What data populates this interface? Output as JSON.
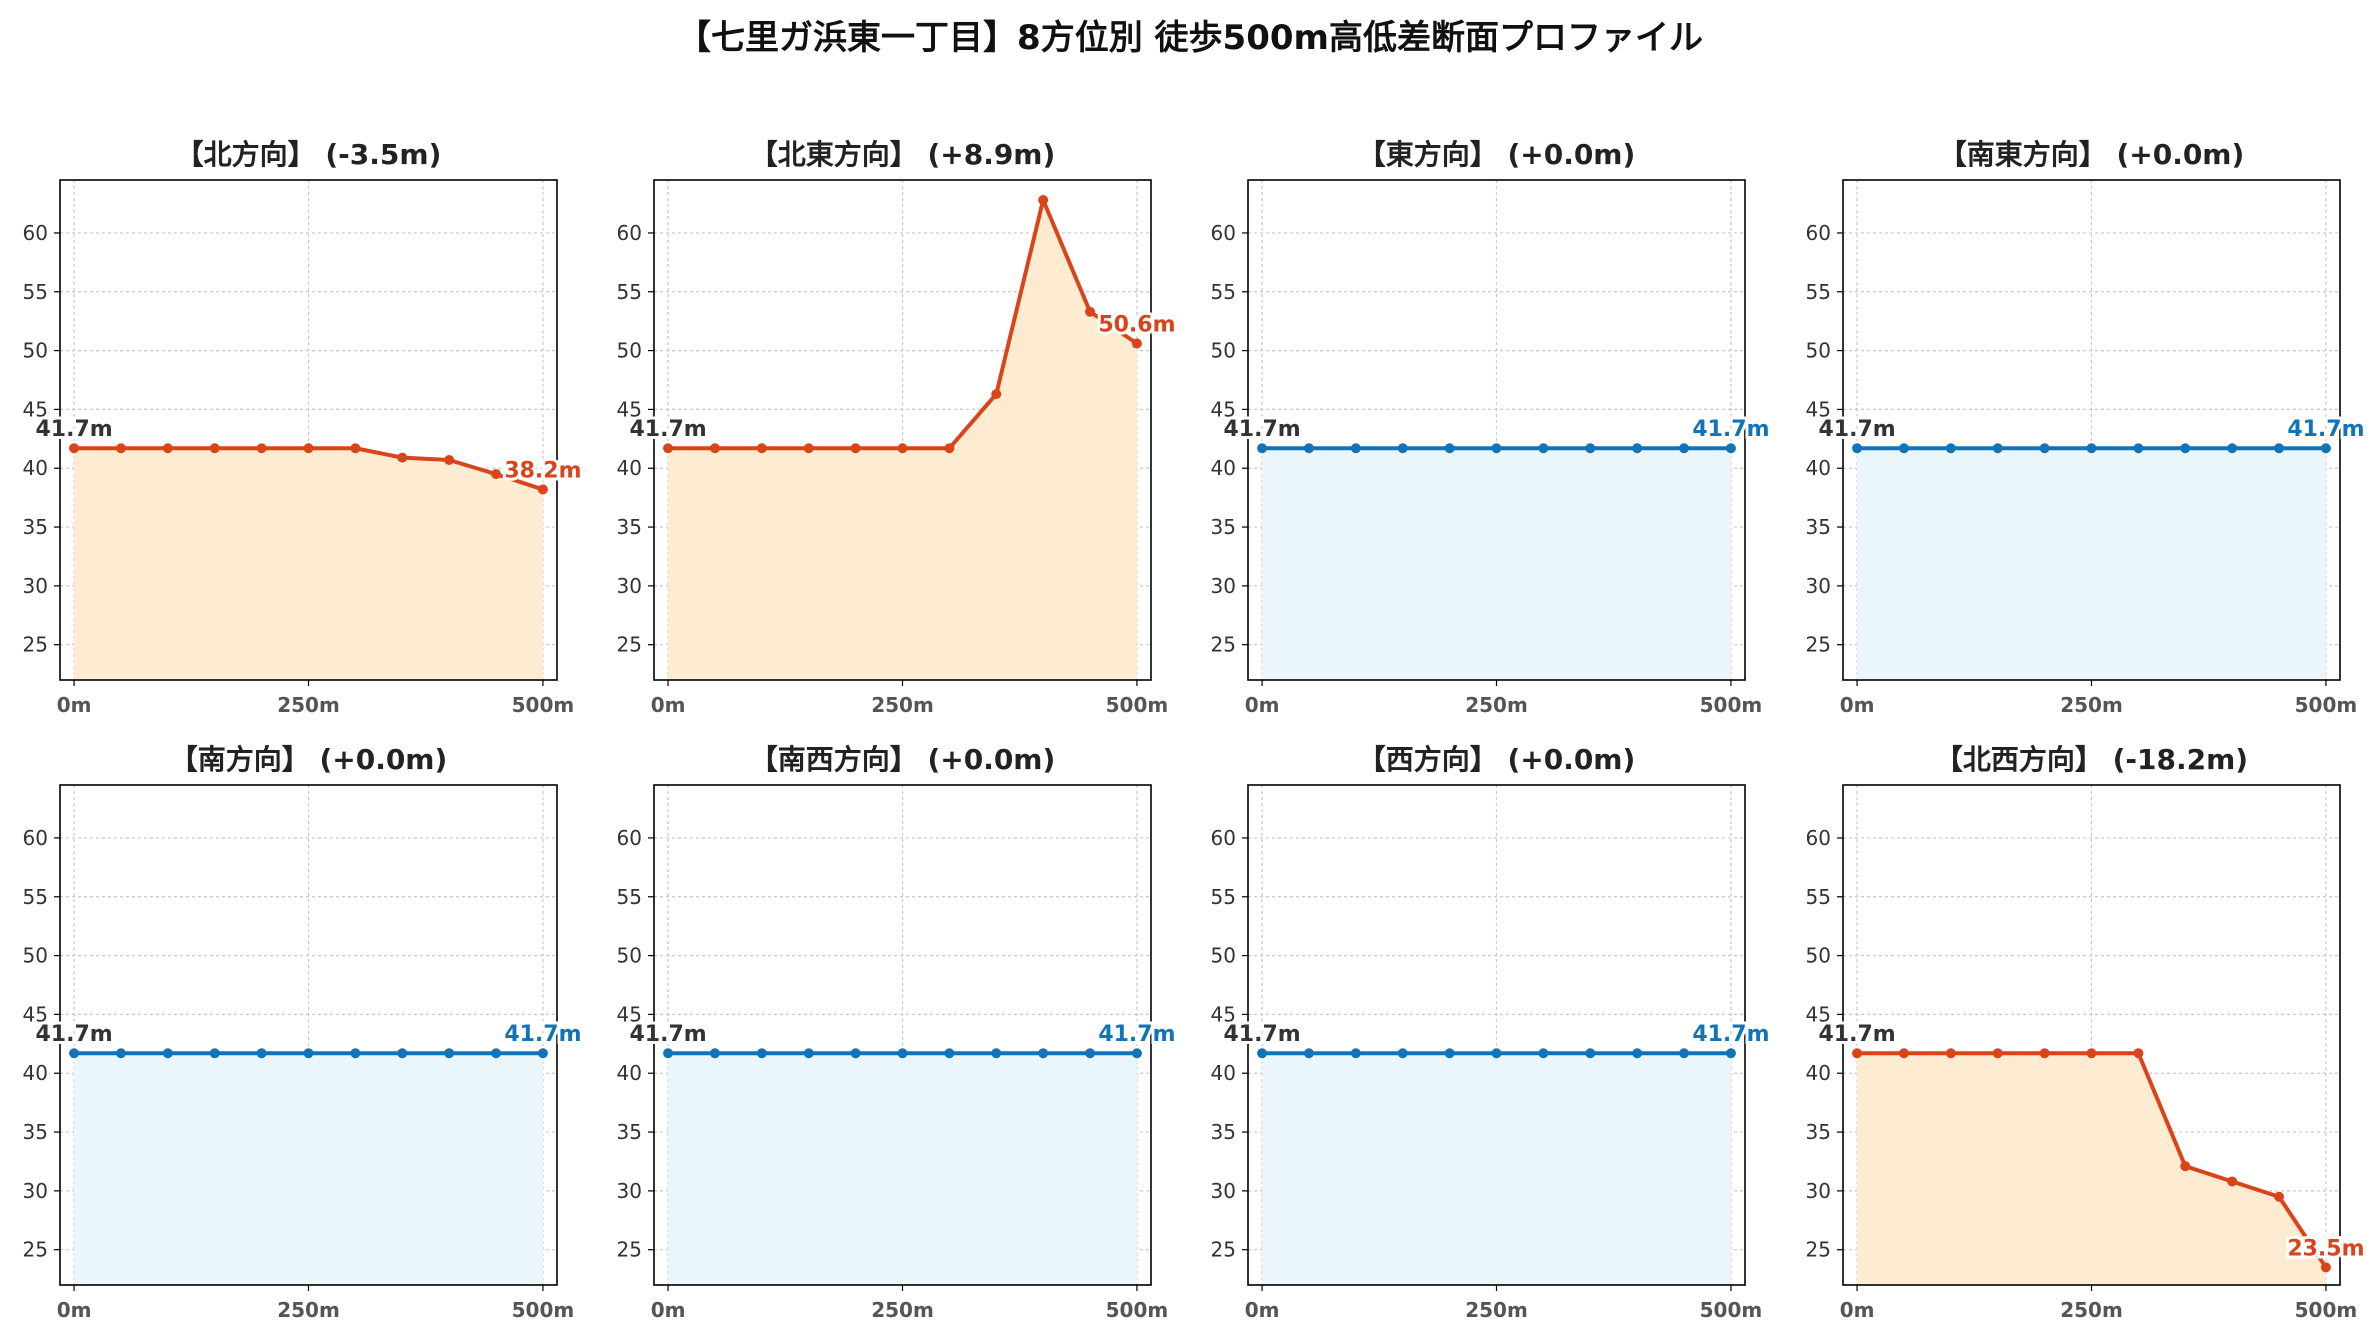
{
  "title": "【七里ガ浜東一丁目】8方位別 徒歩500m高低差断面プロファイル",
  "colors": {
    "up_line": "#d9441a",
    "up_fill": "#feecd2",
    "flat_line": "#1274b8",
    "flat_fill": "#ebf6fb",
    "start_label": "#333333",
    "grid": "#c8c8c8"
  },
  "chart_data": [
    {
      "type": "area",
      "title": "【北方向】 (-3.5m)",
      "variant": "change",
      "x": [
        0,
        50,
        100,
        150,
        200,
        250,
        300,
        350,
        400,
        450,
        500
      ],
      "values": [
        41.7,
        41.7,
        41.7,
        41.7,
        41.7,
        41.7,
        41.7,
        40.9,
        40.7,
        39.5,
        38.2
      ],
      "start_label": "41.7m",
      "end_label": "38.2m",
      "xticks": [
        "0m",
        "250m",
        "500m"
      ],
      "xlim": [
        -15,
        515
      ],
      "ylim": [
        22,
        64.5
      ],
      "yticks": [
        25,
        30,
        35,
        40,
        45,
        50,
        55,
        60
      ],
      "grid": true
    },
    {
      "type": "area",
      "title": "【北東方向】 (+8.9m)",
      "variant": "change",
      "x": [
        0,
        50,
        100,
        150,
        200,
        250,
        300,
        350,
        400,
        450,
        500
      ],
      "values": [
        41.7,
        41.7,
        41.7,
        41.7,
        41.7,
        41.7,
        41.7,
        46.3,
        62.8,
        53.3,
        50.6
      ],
      "start_label": "41.7m",
      "end_label": "50.6m",
      "xticks": [
        "0m",
        "250m",
        "500m"
      ],
      "xlim": [
        -15,
        515
      ],
      "ylim": [
        22,
        64.5
      ],
      "yticks": [
        25,
        30,
        35,
        40,
        45,
        50,
        55,
        60
      ],
      "grid": true
    },
    {
      "type": "area",
      "title": "【東方向】 (+0.0m)",
      "variant": "flat",
      "x": [
        0,
        50,
        100,
        150,
        200,
        250,
        300,
        350,
        400,
        450,
        500
      ],
      "values": [
        41.7,
        41.7,
        41.7,
        41.7,
        41.7,
        41.7,
        41.7,
        41.7,
        41.7,
        41.7,
        41.7
      ],
      "start_label": "41.7m",
      "end_label": "41.7m",
      "xticks": [
        "0m",
        "250m",
        "500m"
      ],
      "xlim": [
        -15,
        515
      ],
      "ylim": [
        22,
        64.5
      ],
      "yticks": [
        25,
        30,
        35,
        40,
        45,
        50,
        55,
        60
      ],
      "grid": true
    },
    {
      "type": "area",
      "title": "【南東方向】 (+0.0m)",
      "variant": "flat",
      "x": [
        0,
        50,
        100,
        150,
        200,
        250,
        300,
        350,
        400,
        450,
        500
      ],
      "values": [
        41.7,
        41.7,
        41.7,
        41.7,
        41.7,
        41.7,
        41.7,
        41.7,
        41.7,
        41.7,
        41.7
      ],
      "start_label": "41.7m",
      "end_label": "41.7m",
      "xticks": [
        "0m",
        "250m",
        "500m"
      ],
      "xlim": [
        -15,
        515
      ],
      "ylim": [
        22,
        64.5
      ],
      "yticks": [
        25,
        30,
        35,
        40,
        45,
        50,
        55,
        60
      ],
      "grid": true
    },
    {
      "type": "area",
      "title": "【南方向】 (+0.0m)",
      "variant": "flat",
      "x": [
        0,
        50,
        100,
        150,
        200,
        250,
        300,
        350,
        400,
        450,
        500
      ],
      "values": [
        41.7,
        41.7,
        41.7,
        41.7,
        41.7,
        41.7,
        41.7,
        41.7,
        41.7,
        41.7,
        41.7
      ],
      "start_label": "41.7m",
      "end_label": "41.7m",
      "xticks": [
        "0m",
        "250m",
        "500m"
      ],
      "xlim": [
        -15,
        515
      ],
      "ylim": [
        22,
        64.5
      ],
      "yticks": [
        25,
        30,
        35,
        40,
        45,
        50,
        55,
        60
      ],
      "grid": true
    },
    {
      "type": "area",
      "title": "【南西方向】 (+0.0m)",
      "variant": "flat",
      "x": [
        0,
        50,
        100,
        150,
        200,
        250,
        300,
        350,
        400,
        450,
        500
      ],
      "values": [
        41.7,
        41.7,
        41.7,
        41.7,
        41.7,
        41.7,
        41.7,
        41.7,
        41.7,
        41.7,
        41.7
      ],
      "start_label": "41.7m",
      "end_label": "41.7m",
      "xticks": [
        "0m",
        "250m",
        "500m"
      ],
      "xlim": [
        -15,
        515
      ],
      "ylim": [
        22,
        64.5
      ],
      "yticks": [
        25,
        30,
        35,
        40,
        45,
        50,
        55,
        60
      ],
      "grid": true
    },
    {
      "type": "area",
      "title": "【西方向】 (+0.0m)",
      "variant": "flat",
      "x": [
        0,
        50,
        100,
        150,
        200,
        250,
        300,
        350,
        400,
        450,
        500
      ],
      "values": [
        41.7,
        41.7,
        41.7,
        41.7,
        41.7,
        41.7,
        41.7,
        41.7,
        41.7,
        41.7,
        41.7
      ],
      "start_label": "41.7m",
      "end_label": "41.7m",
      "xticks": [
        "0m",
        "250m",
        "500m"
      ],
      "xlim": [
        -15,
        515
      ],
      "ylim": [
        22,
        64.5
      ],
      "yticks": [
        25,
        30,
        35,
        40,
        45,
        50,
        55,
        60
      ],
      "grid": true
    },
    {
      "type": "area",
      "title": "【北西方向】 (-18.2m)",
      "variant": "change",
      "x": [
        0,
        50,
        100,
        150,
        200,
        250,
        300,
        350,
        400,
        450,
        500
      ],
      "values": [
        41.7,
        41.7,
        41.7,
        41.7,
        41.7,
        41.7,
        41.7,
        32.1,
        30.8,
        29.5,
        23.5
      ],
      "start_label": "41.7m",
      "end_label": "23.5m",
      "xticks": [
        "0m",
        "250m",
        "500m"
      ],
      "xlim": [
        -15,
        515
      ],
      "ylim": [
        22,
        64.5
      ],
      "yticks": [
        25,
        30,
        35,
        40,
        45,
        50,
        55,
        60
      ],
      "grid": true
    }
  ]
}
